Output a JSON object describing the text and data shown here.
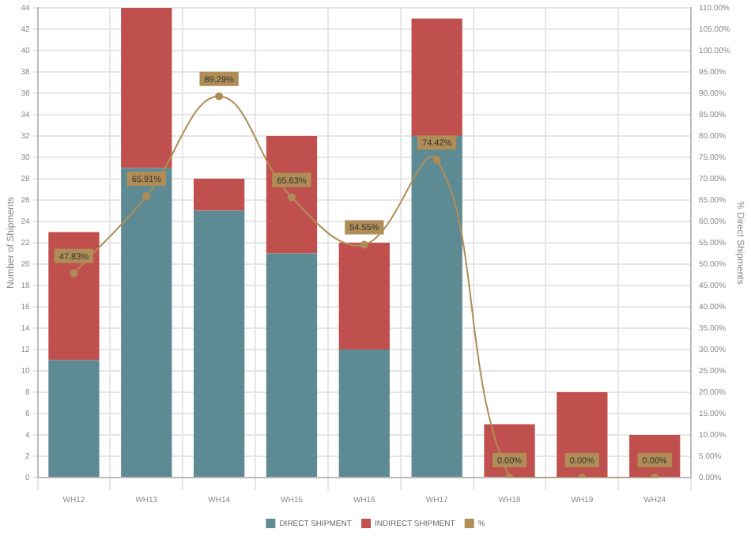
{
  "chart_data": {
    "type": "bar",
    "stacked": true,
    "categories": [
      "WH12",
      "WH13",
      "WH14",
      "WH15",
      "WH16",
      "WH17",
      "WH18",
      "WH19",
      "WH24"
    ],
    "series": [
      {
        "name": "DIRECT SHIPMENT",
        "color": "#5e8a94",
        "values": [
          11,
          29,
          25,
          21,
          12,
          32,
          0,
          0,
          0
        ]
      },
      {
        "name": "INDIRECT SHIPMENT",
        "color": "#c0504d",
        "values": [
          12,
          15,
          3,
          11,
          10,
          11,
          5,
          8,
          4
        ]
      },
      {
        "name": "%",
        "type": "line",
        "axis": "y2",
        "color": "#b08d57",
        "marker": "circle",
        "values": [
          47.83,
          65.91,
          89.29,
          65.63,
          54.55,
          74.42,
          0,
          0,
          0
        ],
        "value_labels": [
          "47.83%",
          "65.91%",
          "89.29%",
          "65.63%",
          "54.55%",
          "74.42%",
          "0.00%",
          "0.00%",
          "0.00%"
        ]
      }
    ],
    "ylabel": "Number of Shipments",
    "y2label": "% Direct Shipments",
    "ylim": [
      0,
      44
    ],
    "yticks": [
      0,
      2,
      4,
      6,
      8,
      10,
      12,
      14,
      16,
      18,
      20,
      22,
      24,
      26,
      28,
      30,
      32,
      34,
      36,
      38,
      40,
      42,
      44
    ],
    "y2lim": [
      0,
      110
    ],
    "y2ticks": [
      {
        "value": 0,
        "label": "0.00%"
      },
      {
        "value": 5,
        "label": "5.00%"
      },
      {
        "value": 10,
        "label": "10.00%"
      },
      {
        "value": 15,
        "label": "15.00%"
      },
      {
        "value": 20,
        "label": "20.00%"
      },
      {
        "value": 25,
        "label": "25.00%"
      },
      {
        "value": 30,
        "label": "30.00%"
      },
      {
        "value": 35,
        "label": "35.00%"
      },
      {
        "value": 40,
        "label": "40.00%"
      },
      {
        "value": 45,
        "label": "45.00%"
      },
      {
        "value": 50,
        "label": "50.00%"
      },
      {
        "value": 55,
        "label": "55.00%"
      },
      {
        "value": 60,
        "label": "60.00%"
      },
      {
        "value": 65,
        "label": "65.00%"
      },
      {
        "value": 70,
        "label": "70.00%"
      },
      {
        "value": 75,
        "label": "75.00%"
      },
      {
        "value": 80,
        "label": "80.00%"
      },
      {
        "value": 85,
        "label": "85.00%"
      },
      {
        "value": 90,
        "label": "90.00%"
      },
      {
        "value": 95,
        "label": "95.00%"
      },
      {
        "value": 100,
        "label": "100.00%"
      },
      {
        "value": 105,
        "label": "105.00%"
      },
      {
        "value": 110,
        "label": "110.00%"
      }
    ],
    "grid": true,
    "legend": "bottom"
  }
}
